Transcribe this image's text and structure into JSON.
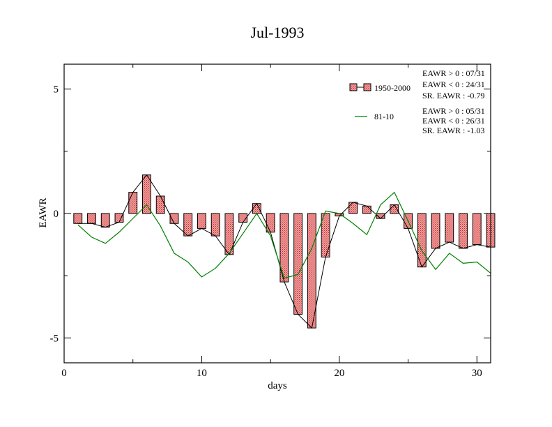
{
  "chart_data": {
    "type": "bar",
    "title": "Jul-1993",
    "xlabel": "days",
    "ylabel": "EAWR",
    "xlim": [
      0,
      31
    ],
    "ylim": [
      -6,
      6
    ],
    "xticks": [
      0,
      10,
      20,
      30
    ],
    "yticks": [
      5,
      0,
      -5
    ],
    "ytick_labels": [
      "5",
      "0",
      "-5"
    ],
    "grid": false,
    "legend_position": "top-right",
    "x": [
      1,
      2,
      3,
      4,
      5,
      6,
      7,
      8,
      9,
      10,
      11,
      12,
      13,
      14,
      15,
      16,
      17,
      18,
      19,
      20,
      21,
      22,
      23,
      24,
      25,
      26,
      27,
      28,
      29,
      30,
      31
    ],
    "series": [
      {
        "name": "1950-2000",
        "type": "bar",
        "color": "#f08080",
        "values": [
          -0.4,
          -0.4,
          -0.55,
          -0.35,
          0.85,
          1.55,
          0.7,
          -0.4,
          -0.9,
          -0.6,
          -0.9,
          -1.65,
          -0.35,
          0.4,
          -0.75,
          -2.75,
          -4.05,
          -4.6,
          -1.75,
          -0.1,
          0.45,
          0.3,
          -0.2,
          0.35,
          -0.6,
          -2.15,
          -1.4,
          -1.15,
          -1.4,
          -1.25,
          -1.35
        ],
        "stats": [
          "EAWR > 0 : 07/31",
          "EAWR < 0 : 24/31",
          "SR. EAWR : -0.79"
        ]
      },
      {
        "name": "81-10",
        "type": "line",
        "color": "#008000",
        "values": [
          -0.45,
          -0.95,
          -1.2,
          -0.75,
          -0.2,
          0.35,
          -0.5,
          -1.6,
          -1.95,
          -2.55,
          -2.2,
          -1.6,
          -0.8,
          0.0,
          -0.9,
          -2.6,
          -2.45,
          -1.4,
          0.1,
          0.0,
          -0.4,
          -0.85,
          0.35,
          0.85,
          -0.3,
          -1.5,
          -2.25,
          -1.6,
          -2.0,
          -1.95,
          -2.4
        ],
        "stats": [
          "EAWR > 0 : 05/31",
          "EAWR < 0 : 26/31",
          "SR. EAWR : -1.03"
        ]
      }
    ]
  }
}
